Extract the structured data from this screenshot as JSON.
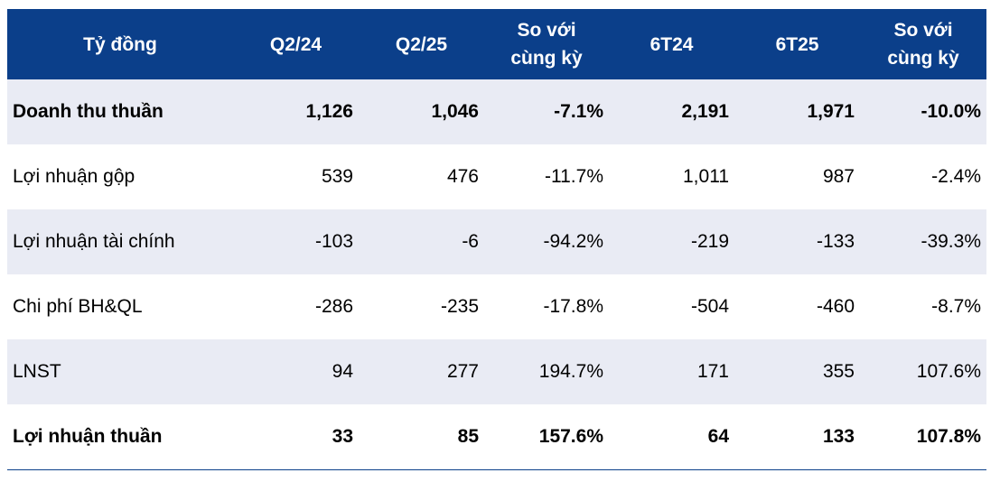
{
  "colors": {
    "header_bg": "#0b3f8a",
    "row_shade": "#e9ebf4"
  },
  "header": [
    "Tỷ đồng",
    "Q2/24",
    "Q2/25",
    "So với\ncùng kỳ",
    "6T24",
    "6T25",
    "So với\ncùng kỳ"
  ],
  "rows": [
    {
      "label": "Doanh thu thuần",
      "values": [
        "1,126",
        "1,046",
        "-7.1%",
        "2,191",
        "1,971",
        "-10.0%"
      ],
      "bold": true
    },
    {
      "label": "Lợi nhuận gộp",
      "values": [
        "539",
        "476",
        "-11.7%",
        "1,011",
        "987",
        "-2.4%"
      ],
      "bold": false
    },
    {
      "label": "Lợi nhuận tài chính",
      "values": [
        "-103",
        "-6",
        "-94.2%",
        "-219",
        "-133",
        "-39.3%"
      ],
      "bold": false
    },
    {
      "label": "Chi phí BH&QL",
      "values": [
        "-286",
        "-235",
        "-17.8%",
        "-504",
        "-460",
        "-8.7%"
      ],
      "bold": false
    },
    {
      "label": "LNST",
      "values": [
        "94",
        "277",
        "194.7%",
        "171",
        "355",
        "107.6%"
      ],
      "bold": false
    },
    {
      "label": "Lợi nhuận thuần",
      "values": [
        "33",
        "85",
        "157.6%",
        "64",
        "133",
        "107.8%"
      ],
      "bold": true
    }
  ]
}
